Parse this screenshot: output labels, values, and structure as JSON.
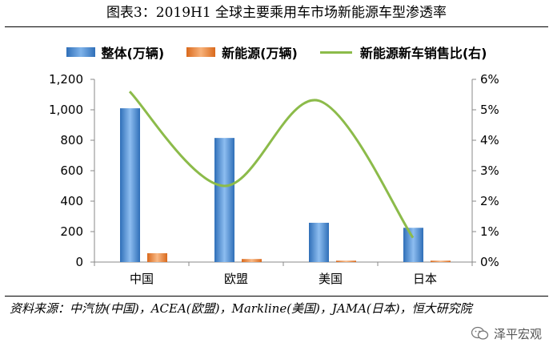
{
  "title": "图表3：2019H1 全球主要乘用车市场新能源车型渗透率",
  "source_text": "资料来源：中汽协(中国)，ACEA(欧盟)，Markline(美国)，JAMA(日本)，恒大研究院",
  "watermark": "泽平宏观",
  "colors": {
    "total_bar": "#4f8fd6",
    "ev_bar": "#ee8a3c",
    "ratio_line": "#8cbb4a"
  },
  "chart_data": {
    "type": "bar",
    "categories": [
      "中国",
      "欧盟",
      "美国",
      "日本"
    ],
    "series": [
      {
        "name": "整体(万辆)",
        "type": "bar",
        "axis": "left",
        "values": [
          1010,
          815,
          258,
          225
        ]
      },
      {
        "name": "新能源(万辆)",
        "type": "bar",
        "axis": "left",
        "values": [
          58,
          20,
          9,
          9
        ]
      },
      {
        "name": "新能源新车销售比(右)",
        "type": "line",
        "axis": "right",
        "values": [
          5.6,
          2.5,
          5.3,
          0.8
        ]
      }
    ],
    "y_left": {
      "range": [
        0,
        1200
      ],
      "ticks": [
        "0",
        "200",
        "400",
        "600",
        "800",
        "1,000",
        "1,200"
      ]
    },
    "y_right": {
      "range": [
        0,
        6
      ],
      "ticks": [
        "0%",
        "1%",
        "2%",
        "3%",
        "4%",
        "5%",
        "6%"
      ]
    },
    "grid": false,
    "legend_position": "top"
  }
}
